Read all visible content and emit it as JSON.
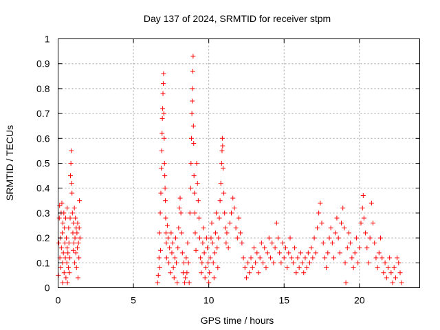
{
  "chart_data": {
    "type": "scatter",
    "title": "Day 137 of 2024, SRMTID for receiver stpm",
    "xlabel": "GPS time / hours",
    "ylabel": "SRMTID / TECUs",
    "xlim": [
      0,
      24
    ],
    "ylim": [
      0,
      1
    ],
    "xticks": [
      "0",
      "5",
      "10",
      "15",
      "20"
    ],
    "xtick_values": [
      0,
      5,
      10,
      15,
      20
    ],
    "yticks": [
      "0",
      "0.1",
      "0.2",
      "0.3",
      "0.4",
      "0.5",
      "0.6",
      "0.7",
      "0.8",
      "0.9",
      "1"
    ],
    "ytick_values": [
      0,
      0.1,
      0.2,
      0.3,
      0.4,
      0.5,
      0.6,
      0.7,
      0.8,
      0.9,
      1
    ],
    "grid": true,
    "marker": "plus",
    "color": "#ff0000",
    "series": [
      {
        "values": [
          [
            0.02,
            0.05
          ],
          [
            0.05,
            0.18
          ],
          [
            0.08,
            0.28
          ],
          [
            0.1,
            0.33
          ],
          [
            0.12,
            0.12
          ],
          [
            0.15,
            0.2
          ],
          [
            0.18,
            0.08
          ],
          [
            0.2,
            0.3
          ],
          [
            0.22,
            0.16
          ],
          [
            0.25,
            0.34
          ],
          [
            0.28,
            0.22
          ],
          [
            0.3,
            0.1
          ],
          [
            0.32,
            0.26
          ],
          [
            0.35,
            0.14
          ],
          [
            0.38,
            0.3
          ],
          [
            0.4,
            0.06
          ],
          [
            0.42,
            0.24
          ],
          [
            0.45,
            0.18
          ],
          [
            0.48,
            0.12
          ],
          [
            0.5,
            0.28
          ],
          [
            0.52,
            0.04
          ],
          [
            0.55,
            0.2
          ],
          [
            0.58,
            0.1
          ],
          [
            0.6,
            0.16
          ],
          [
            0.62,
            0.02
          ],
          [
            0.65,
            0.14
          ],
          [
            0.68,
            0.08
          ],
          [
            0.7,
            0.24
          ],
          [
            0.72,
            0.18
          ],
          [
            0.75,
            0.06
          ],
          [
            0.78,
            0.12
          ],
          [
            0.8,
            0.28
          ],
          [
            0.82,
            0.45
          ],
          [
            0.85,
            0.5
          ],
          [
            0.88,
            0.55
          ],
          [
            0.9,
            0.42
          ],
          [
            0.92,
            0.38
          ],
          [
            0.95,
            0.3
          ],
          [
            0.98,
            0.22
          ],
          [
            1.0,
            0.15
          ],
          [
            1.02,
            0.26
          ],
          [
            1.05,
            0.18
          ],
          [
            1.08,
            0.32
          ],
          [
            1.1,
            0.1
          ],
          [
            1.12,
            0.2
          ],
          [
            1.15,
            0.28
          ],
          [
            1.18,
            0.14
          ],
          [
            1.2,
            0.24
          ],
          [
            1.22,
            0.08
          ],
          [
            1.25,
            0.22
          ],
          [
            1.28,
            0.16
          ],
          [
            1.3,
            0.26
          ],
          [
            1.32,
            0.04
          ],
          [
            1.35,
            0.18
          ],
          [
            1.38,
            0.12
          ],
          [
            1.4,
            0.24
          ],
          [
            1.42,
            0.35
          ],
          [
            1.45,
            0.2
          ],
          [
            0.6,
            0.32
          ],
          [
            0.3,
            0.02
          ],
          [
            6.6,
            0.02
          ],
          [
            6.65,
            0.05
          ],
          [
            6.7,
            0.12
          ],
          [
            6.72,
            0.22
          ],
          [
            6.75,
            0.08
          ],
          [
            6.78,
            0.3
          ],
          [
            6.8,
            0.15
          ],
          [
            6.82,
            0.38
          ],
          [
            6.85,
            0.48
          ],
          [
            6.88,
            0.55
          ],
          [
            6.9,
            0.62
          ],
          [
            6.92,
            0.68
          ],
          [
            6.94,
            0.72
          ],
          [
            6.96,
            0.78
          ],
          [
            6.98,
            0.82
          ],
          [
            7.0,
            0.86
          ],
          [
            7.02,
            0.7
          ],
          [
            7.04,
            0.6
          ],
          [
            7.06,
            0.5
          ],
          [
            7.08,
            0.45
          ],
          [
            7.1,
            0.4
          ],
          [
            7.12,
            0.35
          ],
          [
            7.14,
            0.28
          ],
          [
            7.16,
            0.22
          ],
          [
            7.18,
            0.18
          ],
          [
            7.2,
            0.12
          ],
          [
            7.25,
            0.25
          ],
          [
            7.3,
            0.2
          ],
          [
            7.35,
            0.1
          ],
          [
            7.4,
            0.16
          ],
          [
            7.45,
            0.06
          ],
          [
            7.5,
            0.22
          ],
          [
            7.55,
            0.14
          ],
          [
            7.6,
            0.18
          ],
          [
            7.65,
            0.08
          ],
          [
            7.7,
            0.04
          ],
          [
            7.75,
            0.12
          ],
          [
            7.8,
            0.2
          ],
          [
            7.85,
            0.1
          ],
          [
            7.9,
            0.02
          ],
          [
            7.95,
            0.16
          ],
          [
            8.0,
            0.24
          ],
          [
            8.05,
            0.32
          ],
          [
            8.1,
            0.36
          ],
          [
            8.15,
            0.3
          ],
          [
            8.2,
            0.22
          ],
          [
            8.25,
            0.14
          ],
          [
            8.3,
            0.06
          ],
          [
            8.35,
            0.1
          ],
          [
            8.4,
            0.02
          ],
          [
            8.45,
            0.04
          ],
          [
            8.5,
            0.12
          ],
          [
            8.55,
            0.06
          ],
          [
            8.6,
            0.18
          ],
          [
            8.65,
            0.1
          ],
          [
            8.7,
            0.02
          ],
          [
            8.75,
            0.3
          ],
          [
            8.8,
            0.4
          ],
          [
            8.82,
            0.5
          ],
          [
            8.85,
            0.6
          ],
          [
            8.88,
            0.7
          ],
          [
            8.9,
            0.75
          ],
          [
            8.92,
            0.8
          ],
          [
            8.94,
            0.87
          ],
          [
            8.96,
            0.93
          ],
          [
            8.98,
            0.65
          ],
          [
            9.0,
            0.58
          ],
          [
            9.02,
            0.45
          ],
          [
            9.05,
            0.38
          ],
          [
            9.08,
            0.3
          ],
          [
            9.1,
            0.22
          ],
          [
            9.15,
            0.15
          ],
          [
            9.2,
            0.5
          ],
          [
            9.25,
            0.42
          ],
          [
            9.3,
            0.35
          ],
          [
            9.35,
            0.28
          ],
          [
            9.4,
            0.2
          ],
          [
            9.45,
            0.12
          ],
          [
            9.5,
            0.06
          ],
          [
            9.55,
            0.1
          ],
          [
            9.6,
            0.18
          ],
          [
            9.65,
            0.24
          ],
          [
            9.7,
            0.14
          ],
          [
            9.75,
            0.04
          ],
          [
            9.8,
            0.08
          ],
          [
            9.85,
            0.2
          ],
          [
            9.9,
            0.16
          ],
          [
            9.95,
            0.1
          ],
          [
            10.0,
            0.02
          ],
          [
            10.05,
            0.06
          ],
          [
            10.1,
            0.12
          ],
          [
            10.15,
            0.2
          ],
          [
            10.2,
            0.26
          ],
          [
            10.25,
            0.18
          ],
          [
            10.3,
            0.1
          ],
          [
            10.35,
            0.04
          ],
          [
            10.4,
            0.14
          ],
          [
            10.45,
            0.22
          ],
          [
            10.5,
            0.3
          ],
          [
            10.55,
            0.16
          ],
          [
            10.6,
            0.08
          ],
          [
            10.65,
            0.2
          ],
          [
            10.7,
            0.28
          ],
          [
            10.75,
            0.35
          ],
          [
            10.8,
            0.42
          ],
          [
            10.85,
            0.5
          ],
          [
            10.88,
            0.55
          ],
          [
            10.9,
            0.6
          ],
          [
            10.92,
            0.57
          ],
          [
            10.95,
            0.48
          ],
          [
            11.0,
            0.38
          ],
          [
            11.05,
            0.3
          ],
          [
            11.1,
            0.24
          ],
          [
            11.15,
            0.18
          ],
          [
            11.2,
            0.22
          ],
          [
            11.3,
            0.16
          ],
          [
            11.4,
            0.26
          ],
          [
            11.5,
            0.3
          ],
          [
            11.6,
            0.36
          ],
          [
            11.7,
            0.32
          ],
          [
            11.8,
            0.24
          ],
          [
            11.9,
            0.2
          ],
          [
            12.0,
            0.28
          ],
          [
            12.1,
            0.22
          ],
          [
            12.2,
            0.18
          ],
          [
            12.3,
            0.12
          ],
          [
            12.4,
            0.08
          ],
          [
            12.5,
            0.04
          ],
          [
            12.6,
            0.1
          ],
          [
            12.7,
            0.06
          ],
          [
            12.8,
            0.12
          ],
          [
            12.9,
            0.08
          ],
          [
            13.0,
            0.16
          ],
          [
            13.1,
            0.1
          ],
          [
            13.2,
            0.14
          ],
          [
            13.3,
            0.06
          ],
          [
            13.4,
            0.12
          ],
          [
            13.5,
            0.18
          ],
          [
            13.6,
            0.1
          ],
          [
            13.7,
            0.16
          ],
          [
            13.8,
            0.08
          ],
          [
            13.9,
            0.14
          ],
          [
            14.0,
            0.2
          ],
          [
            14.1,
            0.12
          ],
          [
            14.2,
            0.18
          ],
          [
            14.3,
            0.1
          ],
          [
            14.4,
            0.16
          ],
          [
            14.5,
            0.26
          ],
          [
            14.6,
            0.2
          ],
          [
            14.7,
            0.14
          ],
          [
            14.8,
            0.1
          ],
          [
            14.9,
            0.18
          ],
          [
            15.0,
            0.12
          ],
          [
            15.1,
            0.16
          ],
          [
            15.2,
            0.08
          ],
          [
            15.3,
            0.14
          ],
          [
            15.4,
            0.2
          ],
          [
            15.5,
            0.12
          ],
          [
            15.6,
            0.1
          ],
          [
            15.7,
            0.16
          ],
          [
            15.8,
            0.06
          ],
          [
            15.9,
            0.12
          ],
          [
            16.0,
            0.08
          ],
          [
            16.1,
            0.14
          ],
          [
            16.2,
            0.1
          ],
          [
            16.3,
            0.06
          ],
          [
            16.4,
            0.12
          ],
          [
            16.5,
            0.08
          ],
          [
            16.6,
            0.14
          ],
          [
            16.7,
            0.1
          ],
          [
            16.8,
            0.16
          ],
          [
            16.9,
            0.12
          ],
          [
            17.0,
            0.2
          ],
          [
            17.1,
            0.14
          ],
          [
            17.2,
            0.24
          ],
          [
            17.3,
            0.3
          ],
          [
            17.4,
            0.34
          ],
          [
            17.5,
            0.26
          ],
          [
            17.6,
            0.18
          ],
          [
            17.7,
            0.12
          ],
          [
            17.8,
            0.08
          ],
          [
            17.9,
            0.14
          ],
          [
            18.0,
            0.2
          ],
          [
            18.1,
            0.24
          ],
          [
            18.2,
            0.18
          ],
          [
            18.3,
            0.12
          ],
          [
            18.4,
            0.22
          ],
          [
            18.5,
            0.28
          ],
          [
            18.6,
            0.2
          ],
          [
            18.7,
            0.14
          ],
          [
            18.8,
            0.26
          ],
          [
            18.9,
            0.32
          ],
          [
            19.0,
            0.24
          ],
          [
            19.05,
            0.1
          ],
          [
            19.1,
            0.02
          ],
          [
            19.2,
            0.16
          ],
          [
            19.3,
            0.22
          ],
          [
            19.4,
            0.18
          ],
          [
            19.5,
            0.12
          ],
          [
            19.6,
            0.08
          ],
          [
            19.7,
            0.14
          ],
          [
            19.8,
            0.2
          ],
          [
            19.9,
            0.1
          ],
          [
            20.0,
            0.16
          ],
          [
            20.1,
            0.26
          ],
          [
            20.2,
            0.32
          ],
          [
            20.25,
            0.37
          ],
          [
            20.3,
            0.28
          ],
          [
            20.4,
            0.22
          ],
          [
            20.5,
            0.16
          ],
          [
            20.6,
            0.1
          ],
          [
            20.7,
            0.2
          ],
          [
            20.8,
            0.34
          ],
          [
            20.9,
            0.26
          ],
          [
            21.0,
            0.18
          ],
          [
            21.1,
            0.12
          ],
          [
            21.2,
            0.08
          ],
          [
            21.3,
            0.14
          ],
          [
            21.4,
            0.2
          ],
          [
            21.5,
            0.12
          ],
          [
            21.6,
            0.06
          ],
          [
            21.7,
            0.1
          ],
          [
            21.8,
            0.04
          ],
          [
            21.9,
            0.08
          ],
          [
            22.0,
            0.12
          ],
          [
            22.1,
            0.06
          ],
          [
            22.2,
            0.02
          ],
          [
            22.3,
            0.08
          ],
          [
            22.4,
            0.04
          ],
          [
            22.5,
            0.12
          ],
          [
            22.6,
            0.1
          ],
          [
            22.7,
            0.06
          ],
          [
            22.8,
            0.02
          ]
        ]
      }
    ]
  }
}
